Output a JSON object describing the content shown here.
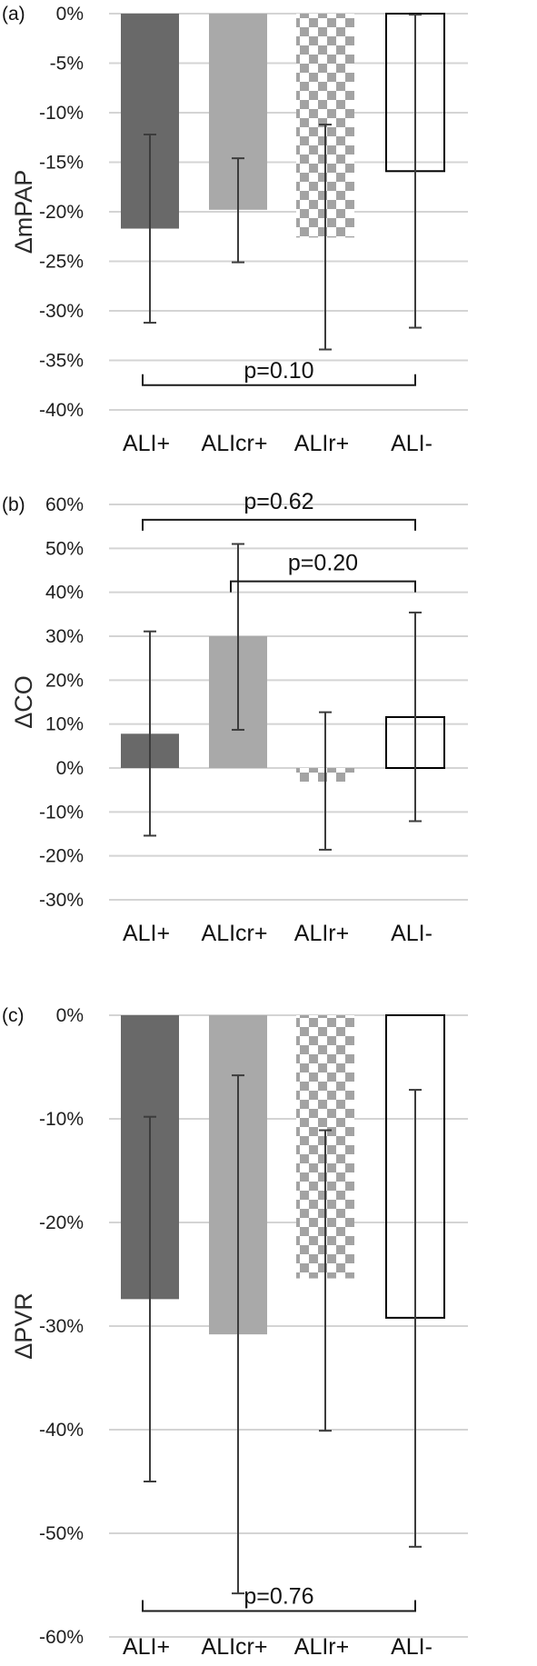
{
  "chart_data": [
    {
      "type": "bar",
      "panel_label": "(a)",
      "ylabel": "ΔmPAP",
      "categories": [
        "ALI+",
        "ALIcr+",
        "ALIr+",
        "ALI-"
      ],
      "values": [
        -21.7,
        -19.8,
        -22.6,
        -15.9
      ],
      "error_low": [
        -31.2,
        -25.1,
        -33.9,
        -31.7
      ],
      "error_high": [
        -12.2,
        -14.6,
        -11.2,
        -0.1
      ],
      "bar_styles": [
        "dark",
        "light",
        "checker",
        "outline"
      ],
      "ylim": [
        -40,
        0
      ],
      "yticks": [
        0,
        -5,
        -10,
        -15,
        -20,
        -25,
        -30,
        -35,
        -40
      ],
      "ytick_labels": [
        "0%",
        "-5%",
        "-10%",
        "-15%",
        "-20%",
        "-25%",
        "-30%",
        "-35%",
        "-40%"
      ],
      "grid": true,
      "brackets": [
        {
          "from": 0,
          "to": 3,
          "y": -37.5,
          "label": "p=0.10",
          "ticks": "up"
        }
      ]
    },
    {
      "type": "bar",
      "panel_label": "(b)",
      "ylabel": "ΔCO",
      "categories": [
        "ALI+",
        "ALIcr+",
        "ALIr+",
        "ALI-"
      ],
      "values": [
        7.8,
        30.0,
        -3.1,
        11.6
      ],
      "error_low": [
        -15.4,
        8.7,
        -18.6,
        -12.1
      ],
      "error_high": [
        31.1,
        51.0,
        12.7,
        35.4
      ],
      "bar_styles": [
        "dark",
        "light",
        "checker",
        "outline"
      ],
      "ylim": [
        -30,
        60
      ],
      "yticks": [
        60,
        50,
        40,
        30,
        20,
        10,
        0,
        -10,
        -20,
        -30
      ],
      "ytick_labels": [
        "60%",
        "50%",
        "40%",
        "30%",
        "20%",
        "10%",
        "0%",
        "-10%",
        "-20%",
        "-30%"
      ],
      "grid": true,
      "brackets": [
        {
          "from": 0,
          "to": 3,
          "y": 56.5,
          "label": "p=0.62",
          "ticks": "down"
        },
        {
          "from": 1,
          "to": 3,
          "y": 42.5,
          "label": "p=0.20",
          "ticks": "down"
        }
      ]
    },
    {
      "type": "bar",
      "panel_label": "(c)",
      "ylabel": "ΔPVR",
      "categories": [
        "ALI+",
        "ALIcr+",
        "ALIr+",
        "ALI-"
      ],
      "values": [
        -27.4,
        -30.8,
        -25.4,
        -29.2
      ],
      "error_low": [
        -45.0,
        -55.8,
        -40.1,
        -51.3
      ],
      "error_high": [
        -9.8,
        -5.8,
        -11.1,
        -7.2
      ],
      "bar_styles": [
        "dark",
        "light",
        "checker",
        "outline"
      ],
      "ylim": [
        -60,
        0
      ],
      "yticks": [
        0,
        -10,
        -20,
        -30,
        -40,
        -50,
        -60
      ],
      "ytick_labels": [
        "0%",
        "-10%",
        "-20%",
        "-30%",
        "-40%",
        "-50%",
        "-60%"
      ],
      "grid": true,
      "brackets": [
        {
          "from": 0,
          "to": 3,
          "y": -57.5,
          "label": "p=0.76",
          "ticks": "up"
        }
      ]
    }
  ],
  "colors": {
    "dark_bar": "#696969",
    "light_bar": "#a9a9a9",
    "checker_a": "#a3a3a3",
    "checker_b": "#ffffff",
    "outline_bar": "#000000",
    "grid": "#d4d4d4",
    "error_bar": "#3c3c3c",
    "bracket": "#1a1a1a"
  }
}
